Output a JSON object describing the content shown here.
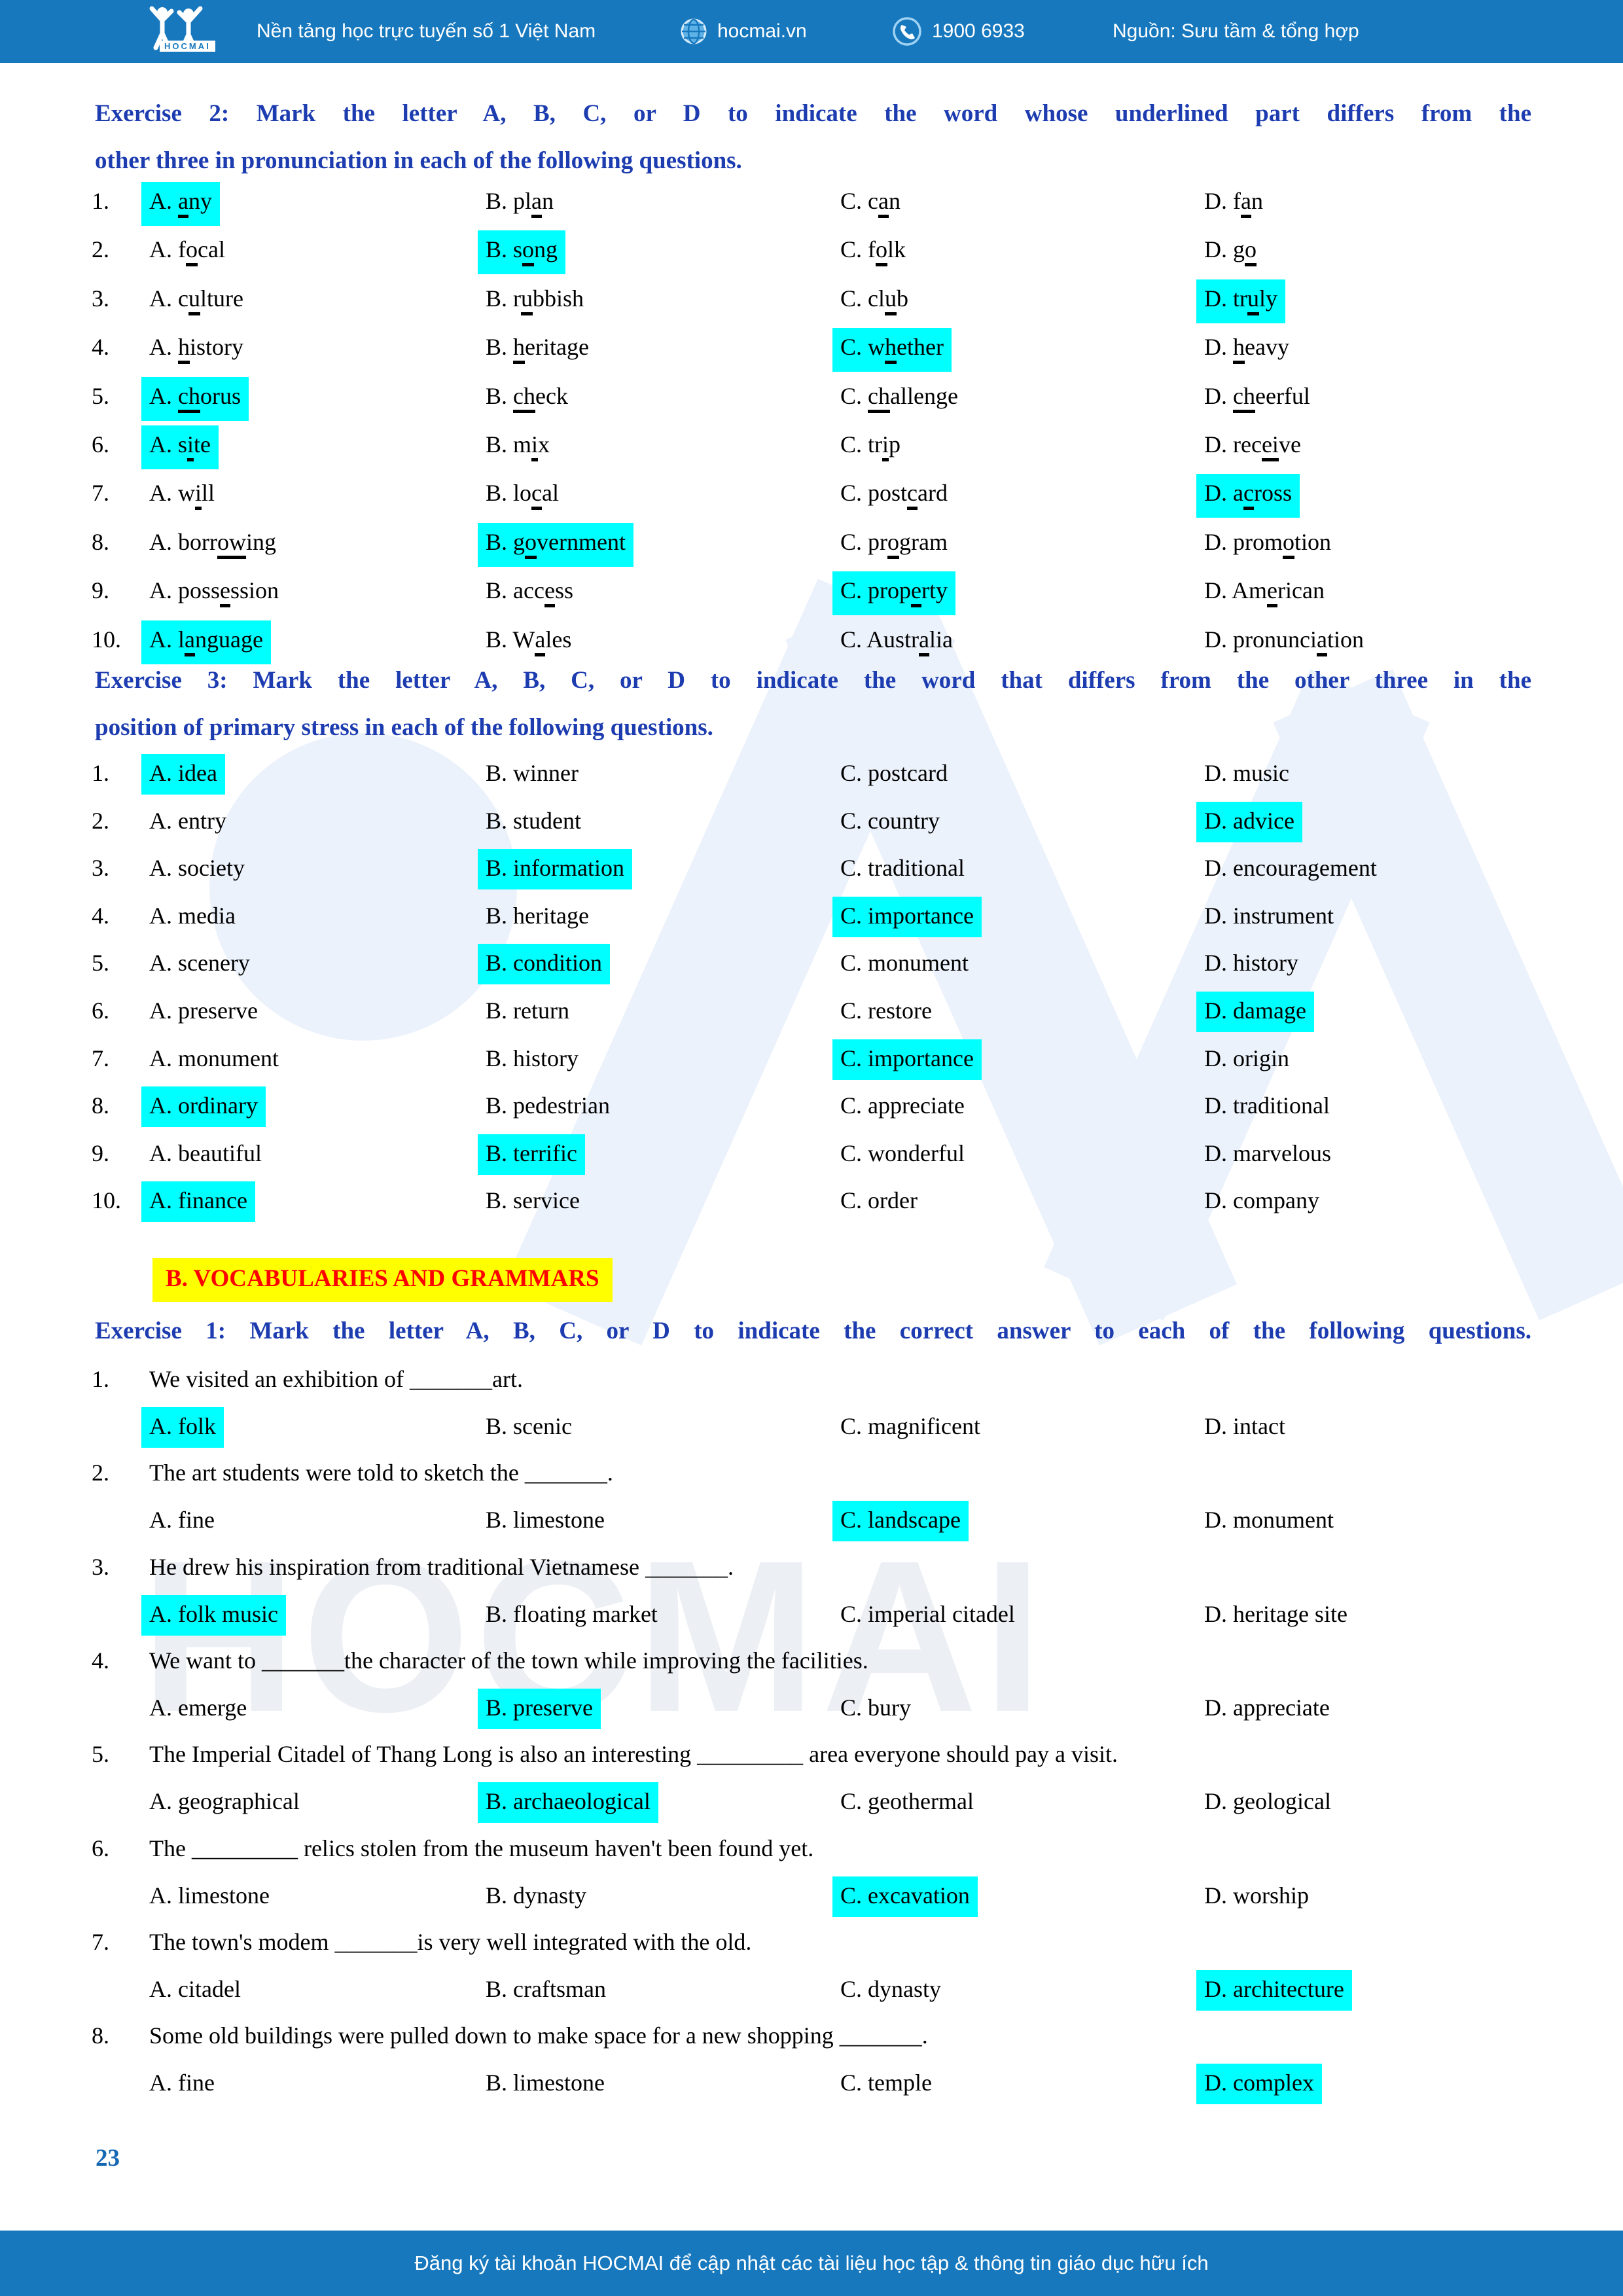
{
  "header": {
    "logo_text": "HOCMAI",
    "brand_line": "Nền tảng học trực tuyến số 1 Việt Nam",
    "site": "hocmai.vn",
    "phone": "1900 6933",
    "source": "Nguồn: Sưu tầm & tổng hợp"
  },
  "colors": {
    "bar_blue": "#1778be",
    "heading_blue": "#1c3cb0",
    "highlight_cyan": "#00ffff",
    "section_yellow": "#ffff00",
    "section_red": "#ff0000"
  },
  "watermark": {
    "text": "HOCMAI"
  },
  "exercise2": {
    "title_line1": "Exercise 2: Mark the letter A, B, C, or D to indicate the word whose underlined part differs from the",
    "title_line2": "other three in pronunciation in each of the following questions.",
    "questions": [
      {
        "num": "1.",
        "options": [
          {
            "label": "A.",
            "word": "[a]ny",
            "hl": true
          },
          {
            "label": "B.",
            "word": "pl[a]n",
            "hl": false
          },
          {
            "label": "C.",
            "word": "c[a]n",
            "hl": false
          },
          {
            "label": "D.",
            "word": "f[a]n",
            "hl": false
          }
        ]
      },
      {
        "num": "2.",
        "options": [
          {
            "label": "A.",
            "word": "f[o]cal",
            "hl": false
          },
          {
            "label": "B.",
            "word": "s[o]ng",
            "hl": true
          },
          {
            "label": "C.",
            "word": "f[o]lk",
            "hl": false
          },
          {
            "label": "D.",
            "word": "g[o]",
            "hl": false
          }
        ]
      },
      {
        "num": "3.",
        "options": [
          {
            "label": "A.",
            "word": "c[u]lture",
            "hl": false
          },
          {
            "label": "B.",
            "word": "r[u]bbish",
            "hl": false
          },
          {
            "label": "C.",
            "word": "cl[u]b",
            "hl": false
          },
          {
            "label": "D.",
            "word": "tr[u]ly",
            "hl": true
          }
        ]
      },
      {
        "num": "4.",
        "options": [
          {
            "label": "A.",
            "word": "[h]istory",
            "hl": false
          },
          {
            "label": "B.",
            "word": "[h]eritage",
            "hl": false
          },
          {
            "label": "C.",
            "word": "w[h]ether",
            "hl": true
          },
          {
            "label": "D.",
            "word": "[h]eavy",
            "hl": false
          }
        ]
      },
      {
        "num": "5.",
        "options": [
          {
            "label": "A.",
            "word": "[ch]orus",
            "hl": true
          },
          {
            "label": "B.",
            "word": "[ch]eck",
            "hl": false
          },
          {
            "label": "C.",
            "word": "[ch]allenge",
            "hl": false
          },
          {
            "label": "D.",
            "word": "[ch]eerful",
            "hl": false
          }
        ]
      },
      {
        "num": "6.",
        "options": [
          {
            "label": "A.",
            "word": "s[i]te",
            "hl": true
          },
          {
            "label": "B.",
            "word": "m[i]x",
            "hl": false
          },
          {
            "label": "C.",
            "word": "tr[i]p",
            "hl": false
          },
          {
            "label": "D.",
            "word": "rec[ei]ve",
            "hl": false
          }
        ]
      },
      {
        "num": "7.",
        "options": [
          {
            "label": "A.",
            "word": "w[i]ll",
            "hl": false
          },
          {
            "label": "B.",
            "word": "lo[c]al",
            "hl": false
          },
          {
            "label": "C.",
            "word": "post[c]ard",
            "hl": false
          },
          {
            "label": "D.",
            "word": "a[c]ross",
            "hl": true
          }
        ]
      },
      {
        "num": "8.",
        "options": [
          {
            "label": "A.",
            "word": "borr[ow]ing",
            "hl": false
          },
          {
            "label": "B.",
            "word": "g[o]vernment",
            "hl": true
          },
          {
            "label": "C.",
            "word": "pr[o]gram",
            "hl": false
          },
          {
            "label": "D.",
            "word": "prom[o]tion",
            "hl": false
          }
        ]
      },
      {
        "num": "9.",
        "options": [
          {
            "label": "A.",
            "word": "poss[e]ssion",
            "hl": false
          },
          {
            "label": "B.",
            "word": "acc[e]ss",
            "hl": false
          },
          {
            "label": "C.",
            "word": "prop[e]rty",
            "hl": true
          },
          {
            "label": "D.",
            "word": "Am[e]rican",
            "hl": false
          }
        ]
      },
      {
        "num": "10.",
        "options": [
          {
            "label": "A.",
            "word": "l[a]nguage",
            "hl": true
          },
          {
            "label": "B.",
            "word": "W[a]les",
            "hl": false
          },
          {
            "label": "C.",
            "word": "Austr[a]lia",
            "hl": false
          },
          {
            "label": "D.",
            "word": "pronunci[a]tion",
            "hl": false
          }
        ]
      }
    ]
  },
  "exercise3": {
    "title_line1": "Exercise 3: Mark the letter A, B, C, or D to indicate the word that differs from the other three in the",
    "title_line2": "position of primary stress in each of the following questions.",
    "questions": [
      {
        "num": "1.",
        "options": [
          {
            "label": "A.",
            "word": "idea",
            "hl": true
          },
          {
            "label": "B.",
            "word": "winner",
            "hl": false
          },
          {
            "label": "C.",
            "word": "postcard",
            "hl": false
          },
          {
            "label": "D.",
            "word": "music",
            "hl": false
          }
        ]
      },
      {
        "num": "2.",
        "options": [
          {
            "label": "A.",
            "word": "entry",
            "hl": false
          },
          {
            "label": "B.",
            "word": "student",
            "hl": false
          },
          {
            "label": "C.",
            "word": "country",
            "hl": false
          },
          {
            "label": "D.",
            "word": "advice",
            "hl": true
          }
        ]
      },
      {
        "num": "3.",
        "options": [
          {
            "label": "A.",
            "word": "society",
            "hl": false
          },
          {
            "label": "B.",
            "word": "information",
            "hl": true
          },
          {
            "label": "C.",
            "word": "traditional",
            "hl": false
          },
          {
            "label": "D.",
            "word": "encouragement",
            "hl": false
          }
        ]
      },
      {
        "num": "4.",
        "options": [
          {
            "label": "A.",
            "word": "media",
            "hl": false
          },
          {
            "label": "B.",
            "word": "heritage",
            "hl": false
          },
          {
            "label": "C.",
            "word": "importance",
            "hl": true
          },
          {
            "label": "D.",
            "word": "instrument",
            "hl": false
          }
        ]
      },
      {
        "num": "5.",
        "options": [
          {
            "label": "A.",
            "word": "scenery",
            "hl": false
          },
          {
            "label": "B.",
            "word": "condition",
            "hl": true
          },
          {
            "label": "C.",
            "word": "monument",
            "hl": false
          },
          {
            "label": "D.",
            "word": "history",
            "hl": false
          }
        ]
      },
      {
        "num": "6.",
        "options": [
          {
            "label": "A.",
            "word": "preserve",
            "hl": false
          },
          {
            "label": "B.",
            "word": "return",
            "hl": false
          },
          {
            "label": "C.",
            "word": "restore",
            "hl": false
          },
          {
            "label": "D.",
            "word": "damage",
            "hl": true
          }
        ]
      },
      {
        "num": "7.",
        "options": [
          {
            "label": "A.",
            "word": "monument",
            "hl": false
          },
          {
            "label": "B.",
            "word": "history",
            "hl": false
          },
          {
            "label": "C.",
            "word": "importance",
            "hl": true
          },
          {
            "label": "D.",
            "word": "origin",
            "hl": false
          }
        ]
      },
      {
        "num": "8.",
        "options": [
          {
            "label": "A.",
            "word": "ordinary",
            "hl": true
          },
          {
            "label": "B.",
            "word": "pedestrian",
            "hl": false
          },
          {
            "label": "C.",
            "word": "appreciate",
            "hl": false
          },
          {
            "label": "D.",
            "word": "traditional",
            "hl": false
          }
        ]
      },
      {
        "num": "9.",
        "options": [
          {
            "label": "A.",
            "word": "beautiful",
            "hl": false
          },
          {
            "label": "B.",
            "word": "terrific",
            "hl": true
          },
          {
            "label": "C.",
            "word": "wonderful",
            "hl": false
          },
          {
            "label": "D.",
            "word": "marvelous",
            "hl": false
          }
        ]
      },
      {
        "num": "10.",
        "options": [
          {
            "label": "A.",
            "word": "finance",
            "hl": true
          },
          {
            "label": "B.",
            "word": "service",
            "hl": false
          },
          {
            "label": "C.",
            "word": "order",
            "hl": false
          },
          {
            "label": "D.",
            "word": "company",
            "hl": false
          }
        ]
      }
    ]
  },
  "section_b": {
    "title": "B. VOCABULARIES AND GRAMMARS"
  },
  "exercise1": {
    "title": "Exercise 1: Mark the letter A, B, C, or D to indicate the correct answer to each of the following questions.",
    "questions": [
      {
        "num": "1.",
        "stem": "We visited an exhibition of _______art.",
        "options": [
          {
            "label": "A.",
            "word": "folk",
            "hl": true
          },
          {
            "label": "B.",
            "word": "scenic",
            "hl": false
          },
          {
            "label": "C.",
            "word": "magnificent",
            "hl": false
          },
          {
            "label": "D.",
            "word": "intact",
            "hl": false
          }
        ]
      },
      {
        "num": "2.",
        "stem": "The art students were told to sketch the _______.",
        "options": [
          {
            "label": "A.",
            "word": "fine",
            "hl": false
          },
          {
            "label": "B.",
            "word": "limestone",
            "hl": false
          },
          {
            "label": "C.",
            "word": "landscape",
            "hl": true
          },
          {
            "label": "D.",
            "word": "monument",
            "hl": false
          }
        ]
      },
      {
        "num": "3.",
        "stem": "He drew his inspiration from traditional Vietnamese _______.",
        "options": [
          {
            "label": "A.",
            "word": "folk music",
            "hl": true
          },
          {
            "label": "B.",
            "word": "floating market",
            "hl": false
          },
          {
            "label": "C.",
            "word": "imperial citadel",
            "hl": false
          },
          {
            "label": "D.",
            "word": "heritage site",
            "hl": false
          }
        ]
      },
      {
        "num": "4.",
        "stem": "We want to _______the character of the town while improving the facilities.",
        "options": [
          {
            "label": "A.",
            "word": "emerge",
            "hl": false
          },
          {
            "label": "B.",
            "word": "preserve",
            "hl": true
          },
          {
            "label": "C.",
            "word": "bury",
            "hl": false
          },
          {
            "label": "D.",
            "word": "appreciate",
            "hl": false
          }
        ]
      },
      {
        "num": "5.",
        "stem": "The Imperial Citadel of Thang Long is also an interesting _________ area everyone should pay a visit.",
        "options": [
          {
            "label": "A.",
            "word": "geographical",
            "hl": false
          },
          {
            "label": "B.",
            "word": "archaeological",
            "hl": true
          },
          {
            "label": "C.",
            "word": "geothermal",
            "hl": false
          },
          {
            "label": "D.",
            "word": "geological",
            "hl": false
          }
        ]
      },
      {
        "num": "6.",
        "stem": "The _________ relics stolen from the museum haven't been found yet.",
        "options": [
          {
            "label": "A.",
            "word": "limestone",
            "hl": false
          },
          {
            "label": "B.",
            "word": "dynasty",
            "hl": false
          },
          {
            "label": "C.",
            "word": "excavation",
            "hl": true
          },
          {
            "label": "D.",
            "word": "worship",
            "hl": false
          }
        ]
      },
      {
        "num": "7.",
        "stem": "The town's modem _______is very well integrated with the old.",
        "options": [
          {
            "label": "A.",
            "word": "citadel",
            "hl": false
          },
          {
            "label": "B.",
            "word": "craftsman",
            "hl": false
          },
          {
            "label": "C.",
            "word": "dynasty",
            "hl": false
          },
          {
            "label": "D.",
            "word": "architecture",
            "hl": true
          }
        ]
      },
      {
        "num": "8.",
        "stem": "Some old buildings were pulled down to make space for a new shopping _______.",
        "options": [
          {
            "label": "A.",
            "word": "fine",
            "hl": false
          },
          {
            "label": "B.",
            "word": "limestone",
            "hl": false
          },
          {
            "label": "C.",
            "word": "temple",
            "hl": false
          },
          {
            "label": "D.",
            "word": "complex",
            "hl": true
          }
        ]
      }
    ]
  },
  "footer": {
    "page_number": "23",
    "note": "Đăng ký tài khoản HOCMAI để cập nhật các tài liệu học tập & thông tin giáo dục hữu ích"
  }
}
